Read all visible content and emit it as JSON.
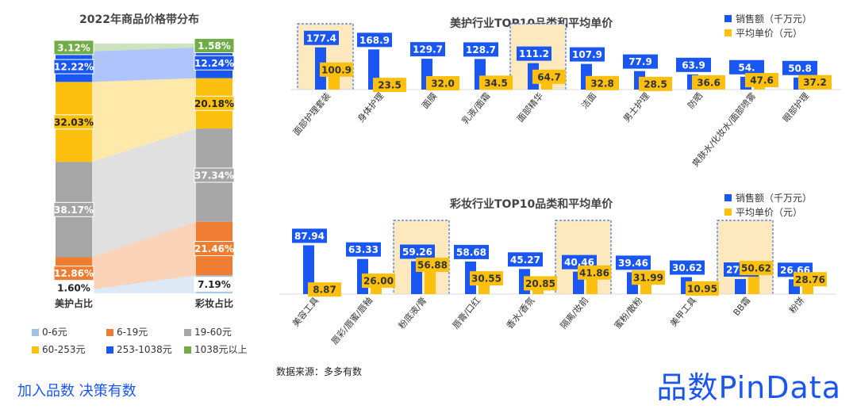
{
  "colors": {
    "blue": "#1a56f2",
    "yellow": "#fdc00f",
    "gray": "#a6a6a6",
    "orange": "#ee7d31",
    "green": "#70ad47",
    "lightblue": "#9dc3e6",
    "highlight": "#fde9bd",
    "brand": "#1a56f2"
  },
  "chart_data": [
    {
      "type": "bar",
      "subtype": "100% stacked bar",
      "title": "2022年商品价格带分布",
      "categories": [
        "美护占比",
        "彩妆占比"
      ],
      "series": [
        {
          "name": "0-6元",
          "color": "#9dc3e6",
          "values": [
            1.6,
            7.19
          ],
          "labels": [
            "1.60%",
            "7.19%"
          ]
        },
        {
          "name": "6-19元",
          "color": "#ee7d31",
          "values": [
            12.86,
            21.46
          ],
          "labels": [
            "12.86%",
            "21.46%"
          ]
        },
        {
          "name": "19-60元",
          "color": "#a6a6a6",
          "values": [
            38.17,
            37.34
          ],
          "labels": [
            "38.17%",
            "37.34%"
          ]
        },
        {
          "name": "60-253元",
          "color": "#fdc00f",
          "values": [
            32.03,
            20.18
          ],
          "labels": [
            "32.03%",
            "20.18%"
          ]
        },
        {
          "name": "253-1038元",
          "color": "#1a56f2",
          "values": [
            12.22,
            12.24
          ],
          "labels": [
            "12.22%",
            "12.24%"
          ]
        },
        {
          "name": "1038元以上",
          "color": "#70ad47",
          "values": [
            3.12,
            1.58
          ],
          "labels": [
            "3.12%",
            "1.58%"
          ]
        }
      ]
    },
    {
      "type": "bar",
      "title": "美护行业TOP10品类和平均单价",
      "categories": [
        "面部护理套装",
        "身体护理",
        "面膜",
        "乳液/面霜",
        "面部精华",
        "洁面",
        "男士护理",
        "防晒",
        "爽肤水/化妆水/面部喷雾",
        "眼部护理"
      ],
      "highlighted": [
        "面部护理套装",
        "面部精华"
      ],
      "series": [
        {
          "name": "销售额（千万元）",
          "values": [
            177.4,
            168.9,
            129.7,
            128.7,
            111.2,
            107.9,
            77.9,
            63.9,
            54.1,
            50.8
          ],
          "labels": [
            "177.4",
            "168.9",
            "129.7",
            "128.7",
            "111.2",
            "107.9",
            "77.9",
            "63.9",
            "54.",
            "50.8"
          ]
        },
        {
          "name": "平均单价（元）",
          "values": [
            100.9,
            23.5,
            32.0,
            34.5,
            64.7,
            32.8,
            28.5,
            36.6,
            47.6,
            37.2
          ],
          "labels": [
            "100.9",
            "23.5",
            "32.0",
            "34.5",
            "64.7",
            "32.8",
            "28.5",
            "36.6",
            "47.6",
            "37.2"
          ]
        }
      ]
    },
    {
      "type": "bar",
      "title": "彩妆行业TOP10品类和平均单价",
      "categories": [
        "美容工具",
        "唇彩/唇蜜/唇釉",
        "粉底液/膏",
        "唇膏/口红",
        "香水/香氛",
        "隔离/妆前",
        "蜜粉/散粉",
        "美甲工具",
        "BB霜",
        "粉饼"
      ],
      "highlighted": [
        "粉底液/膏",
        "隔离/妆前",
        "BB霜"
      ],
      "series": [
        {
          "name": "销售额（千万元）",
          "values": [
            87.94,
            63.33,
            59.26,
            58.68,
            45.27,
            40.46,
            39.46,
            30.62,
            27.11,
            26.66
          ],
          "labels": [
            "87.94",
            "63.33",
            "59.26",
            "58.68",
            "45.27",
            "40.46",
            "39.46",
            "30.62",
            "27.11",
            "26.66"
          ]
        },
        {
          "name": "平均单价（元）",
          "values": [
            8.87,
            26.0,
            56.88,
            30.55,
            20.85,
            41.86,
            31.99,
            10.95,
            50.62,
            28.76
          ],
          "labels": [
            "8.87",
            "26.00",
            "56.88",
            "30.55",
            "20.85",
            "41.86",
            "31.99",
            "10.95",
            "50.62",
            "28.76"
          ]
        }
      ]
    }
  ],
  "legend_main": [
    "0-6元",
    "6-19元",
    "19-60元",
    "60-253元",
    "253-1038元",
    "1038元以上"
  ],
  "source": "数据来源：多多有数",
  "slogan": "加入品数 决策有数",
  "brand": "品数PinData"
}
